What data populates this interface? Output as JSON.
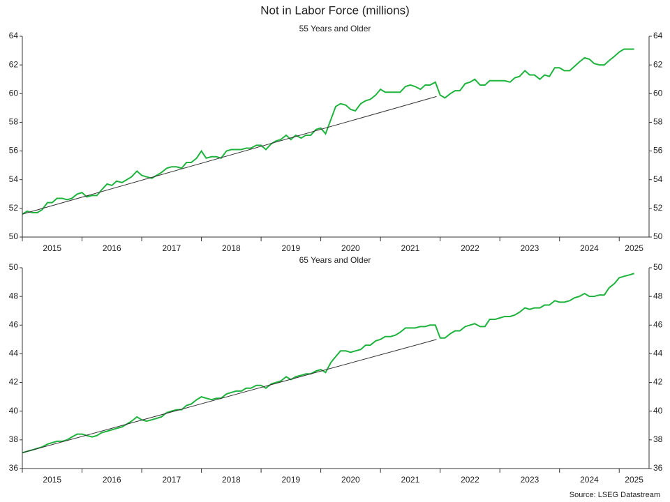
{
  "title": "Not in Labor Force (millions)",
  "source": "Source: LSEG Datastream",
  "chart_data": [
    {
      "type": "line",
      "title": "55 Years and Older",
      "x": [
        2015,
        2015.08,
        2015.17,
        2015.25,
        2015.33,
        2015.42,
        2015.5,
        2015.58,
        2015.67,
        2015.75,
        2015.83,
        2015.92,
        2016,
        2016.08,
        2016.17,
        2016.25,
        2016.33,
        2016.42,
        2016.5,
        2016.58,
        2016.67,
        2016.75,
        2016.83,
        2016.92,
        2017,
        2017.08,
        2017.17,
        2017.25,
        2017.33,
        2017.42,
        2017.5,
        2017.58,
        2017.67,
        2017.75,
        2017.83,
        2017.92,
        2018,
        2018.08,
        2018.17,
        2018.25,
        2018.33,
        2018.42,
        2018.5,
        2018.58,
        2018.67,
        2018.75,
        2018.83,
        2018.92,
        2019,
        2019.08,
        2019.17,
        2019.25,
        2019.33,
        2019.42,
        2019.5,
        2019.58,
        2019.67,
        2019.75,
        2019.83,
        2019.92,
        2020,
        2020.08,
        2020.17,
        2020.25,
        2020.33,
        2020.42,
        2020.5,
        2020.58,
        2020.67,
        2020.75,
        2020.83,
        2020.92,
        2021,
        2021.08,
        2021.17,
        2021.25,
        2021.33,
        2021.42,
        2021.5,
        2021.58,
        2021.67,
        2021.75,
        2021.83,
        2021.92,
        2022,
        2022.08,
        2022.17,
        2022.25,
        2022.33,
        2022.42,
        2022.5,
        2022.58,
        2022.67,
        2022.75,
        2022.83,
        2022.92,
        2023,
        2023.08,
        2023.17,
        2023.25,
        2023.33,
        2023.42,
        2023.5,
        2023.58,
        2023.67,
        2023.75,
        2023.83,
        2023.92,
        2024,
        2024.08,
        2024.17,
        2024.25,
        2024.33,
        2024.42,
        2024.5,
        2024.58,
        2024.67,
        2024.75,
        2024.83,
        2024.92,
        2025,
        2025.08,
        2025.17,
        2025.25
      ],
      "series": [
        {
          "color": "#1db33c",
          "values": [
            51.6,
            51.8,
            51.7,
            51.7,
            51.9,
            52.4,
            52.4,
            52.7,
            52.7,
            52.6,
            52.7,
            53.0,
            53.1,
            52.8,
            52.9,
            52.9,
            53.3,
            53.7,
            53.6,
            53.9,
            53.8,
            54.0,
            54.2,
            54.6,
            54.3,
            54.2,
            54.1,
            54.3,
            54.5,
            54.8,
            54.9,
            54.9,
            54.8,
            55.2,
            55.2,
            55.5,
            56.0,
            55.5,
            55.6,
            55.6,
            55.5,
            56.0,
            56.1,
            56.1,
            56.1,
            56.2,
            56.2,
            56.4,
            56.4,
            56.1,
            56.5,
            56.7,
            56.8,
            57.1,
            56.8,
            57.1,
            56.9,
            57.1,
            57.1,
            57.5,
            57.6,
            57.2,
            58.2,
            59.1,
            59.3,
            59.2,
            58.9,
            58.8,
            59.3,
            59.5,
            59.6,
            59.9,
            60.3,
            60.1,
            60.1,
            60.1,
            60.1,
            60.5,
            60.6,
            60.5,
            60.3,
            60.6,
            60.6,
            60.8,
            59.9,
            59.7,
            60.0,
            60.2,
            60.2,
            60.7,
            60.8,
            61.0,
            60.6,
            60.6,
            60.9,
            60.9,
            60.9,
            60.9,
            60.8,
            61.1,
            61.2,
            61.6,
            61.3,
            61.3,
            61.0,
            61.3,
            61.2,
            61.8,
            61.8,
            61.6,
            61.6,
            61.9,
            62.2,
            62.5,
            62.4,
            62.1,
            62.0,
            62.0,
            62.3,
            62.6,
            62.9,
            63.1,
            63.1,
            63.1
          ]
        },
        {
          "color": "#333333",
          "x": [
            2015,
            2021.94
          ],
          "values": [
            51.6,
            59.8
          ]
        }
      ],
      "xlim": [
        2015,
        2025.5
      ],
      "xticks": [
        2015,
        2016,
        2017,
        2018,
        2019,
        2020,
        2021,
        2022,
        2023,
        2024,
        2025
      ],
      "ylim": [
        50,
        64
      ],
      "yticks": [
        50,
        52,
        54,
        56,
        58,
        60,
        62,
        64
      ],
      "y2lim": [
        50,
        64
      ],
      "y2ticks": [
        50,
        52,
        54,
        56,
        58,
        60,
        62,
        64
      ]
    },
    {
      "type": "line",
      "title": "65 Years and Older",
      "x": [
        2015,
        2015.08,
        2015.17,
        2015.25,
        2015.33,
        2015.42,
        2015.5,
        2015.58,
        2015.67,
        2015.75,
        2015.83,
        2015.92,
        2016,
        2016.08,
        2016.17,
        2016.25,
        2016.33,
        2016.42,
        2016.5,
        2016.58,
        2016.67,
        2016.75,
        2016.83,
        2016.92,
        2017,
        2017.08,
        2017.17,
        2017.25,
        2017.33,
        2017.42,
        2017.5,
        2017.58,
        2017.67,
        2017.75,
        2017.83,
        2017.92,
        2018,
        2018.08,
        2018.17,
        2018.25,
        2018.33,
        2018.42,
        2018.5,
        2018.58,
        2018.67,
        2018.75,
        2018.83,
        2018.92,
        2019,
        2019.08,
        2019.17,
        2019.25,
        2019.33,
        2019.42,
        2019.5,
        2019.58,
        2019.67,
        2019.75,
        2019.83,
        2019.92,
        2020,
        2020.08,
        2020.17,
        2020.25,
        2020.33,
        2020.42,
        2020.5,
        2020.58,
        2020.67,
        2020.75,
        2020.83,
        2020.92,
        2021,
        2021.08,
        2021.17,
        2021.25,
        2021.33,
        2021.42,
        2021.5,
        2021.58,
        2021.67,
        2021.75,
        2021.83,
        2021.92,
        2022,
        2022.08,
        2022.17,
        2022.25,
        2022.33,
        2022.42,
        2022.5,
        2022.58,
        2022.67,
        2022.75,
        2022.83,
        2022.92,
        2023,
        2023.08,
        2023.17,
        2023.25,
        2023.33,
        2023.42,
        2023.5,
        2023.58,
        2023.67,
        2023.75,
        2023.83,
        2023.92,
        2024,
        2024.08,
        2024.17,
        2024.25,
        2024.33,
        2024.42,
        2024.5,
        2024.58,
        2024.67,
        2024.75,
        2024.83,
        2024.92,
        2025,
        2025.08,
        2025.17,
        2025.25
      ],
      "series": [
        {
          "color": "#1db33c",
          "values": [
            37.1,
            37.2,
            37.3,
            37.4,
            37.5,
            37.7,
            37.8,
            37.9,
            37.9,
            38.0,
            38.2,
            38.4,
            38.4,
            38.3,
            38.2,
            38.3,
            38.5,
            38.6,
            38.7,
            38.8,
            38.9,
            39.1,
            39.3,
            39.6,
            39.4,
            39.3,
            39.4,
            39.5,
            39.6,
            39.9,
            40.0,
            40.1,
            40.1,
            40.4,
            40.5,
            40.8,
            41.0,
            40.9,
            40.8,
            40.9,
            40.9,
            41.2,
            41.3,
            41.4,
            41.4,
            41.6,
            41.6,
            41.8,
            41.8,
            41.6,
            41.9,
            42.0,
            42.1,
            42.4,
            42.2,
            42.4,
            42.5,
            42.6,
            42.6,
            42.8,
            42.9,
            42.7,
            43.4,
            43.8,
            44.2,
            44.2,
            44.1,
            44.2,
            44.3,
            44.6,
            44.6,
            44.9,
            45.0,
            45.2,
            45.2,
            45.3,
            45.5,
            45.8,
            45.8,
            45.8,
            45.9,
            45.9,
            46.0,
            46.0,
            45.1,
            45.1,
            45.4,
            45.6,
            45.6,
            45.9,
            46.0,
            46.1,
            45.9,
            45.9,
            46.4,
            46.4,
            46.5,
            46.6,
            46.6,
            46.7,
            46.9,
            47.2,
            47.1,
            47.2,
            47.2,
            47.4,
            47.4,
            47.7,
            47.6,
            47.6,
            47.7,
            47.9,
            48.0,
            48.2,
            48.0,
            48.0,
            48.1,
            48.1,
            48.6,
            48.9,
            49.3,
            49.4,
            49.5,
            49.6
          ]
        },
        {
          "color": "#333333",
          "x": [
            2015,
            2021.94
          ],
          "values": [
            37.1,
            45.0
          ]
        }
      ],
      "xlim": [
        2015,
        2025.5
      ],
      "xticks": [
        2015,
        2016,
        2017,
        2018,
        2019,
        2020,
        2021,
        2022,
        2023,
        2024,
        2025
      ],
      "ylim": [
        36,
        50
      ],
      "yticks": [
        36,
        38,
        40,
        42,
        44,
        46,
        48,
        50
      ],
      "y2lim": [
        36,
        50
      ],
      "y2ticks": [
        36,
        38,
        40,
        42,
        44,
        46,
        48,
        50
      ]
    }
  ]
}
